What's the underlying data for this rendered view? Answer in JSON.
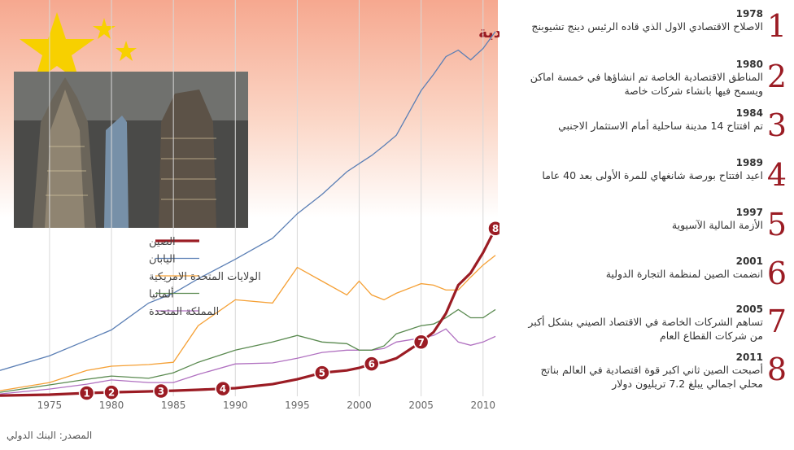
{
  "chart_data": {
    "type": "line",
    "title": "الناتج المحلي الاجمالي المتزايد للصين ومعجزتها الاقتصادية",
    "x": [
      1971,
      1975,
      1978,
      1980,
      1983,
      1985,
      1987,
      1990,
      1993,
      1995,
      1997,
      1999,
      2000,
      2001,
      2002,
      2003,
      2005,
      2006,
      2007,
      2008,
      2009,
      2010,
      2011
    ],
    "xlim": [
      1971,
      2011
    ],
    "xticks": [
      1975,
      1980,
      1985,
      1990,
      1995,
      2000,
      2005,
      2010
    ],
    "ylim": [
      0,
      17
    ],
    "grid": true,
    "series": [
      {
        "name": "الصين",
        "color": "#9b1c24",
        "values": [
          0.03,
          0.07,
          0.14,
          0.17,
          0.21,
          0.24,
          0.28,
          0.35,
          0.52,
          0.73,
          1.01,
          1.11,
          1.22,
          1.39,
          1.46,
          1.63,
          2.33,
          2.75,
          3.55,
          4.77,
          5.29,
          6.16,
          7.2
        ]
      },
      {
        "name": "اليابان",
        "color": "#5b7fb5",
        "values": [
          1.11,
          1.74,
          2.4,
          2.85,
          4.0,
          4.42,
          5.04,
          5.88,
          6.78,
          7.83,
          8.66,
          9.63,
          9.98,
          10.33,
          10.75,
          11.2,
          13.11,
          13.81,
          14.57,
          14.85,
          14.43,
          14.92,
          15.65
        ]
      },
      {
        "name": "الولايات المتحدة الامريكية",
        "color": "#f5a035",
        "values": [
          0.24,
          0.59,
          1.11,
          1.29,
          1.36,
          1.46,
          3.03,
          4.14,
          4.0,
          5.53,
          4.94,
          4.35,
          4.94,
          4.35,
          4.14,
          4.42,
          4.83,
          4.77,
          4.56,
          4.56,
          5.11,
          5.63,
          6.05
        ]
      },
      {
        "name": "ألمانيا",
        "color": "#5a8a50",
        "values": [
          0.17,
          0.49,
          0.73,
          0.87,
          0.77,
          1.01,
          1.46,
          1.98,
          2.33,
          2.61,
          2.33,
          2.26,
          1.98,
          1.98,
          2.16,
          2.68,
          3.03,
          3.1,
          3.37,
          3.72,
          3.37,
          3.37,
          3.72
        ]
      },
      {
        "name": "المملكة المتحدة",
        "color": "#b070c0",
        "values": [
          0.1,
          0.31,
          0.52,
          0.7,
          0.59,
          0.59,
          0.94,
          1.39,
          1.43,
          1.63,
          1.88,
          1.98,
          1.98,
          1.98,
          2.05,
          2.33,
          2.5,
          2.61,
          2.89,
          2.33,
          2.19,
          2.33,
          2.57
        ]
      }
    ],
    "source": "المصدر: البنك الدولي"
  },
  "timeline": [
    {
      "number": 1,
      "year": 1978,
      "text": "الاصلاح الاقتصادي الاول الذي قاده الرئيس دينج  تشيوبنج"
    },
    {
      "number": 2,
      "year": 1980,
      "text": "المناطق الاقتصادية الخاصة  تم انشاؤها في خمسة اماكن ويسمح فيها بانشاء شركات خاصة"
    },
    {
      "number": 3,
      "year": 1984,
      "text": "تم افتتاح 14 مدينة ساحلية أمام الاستثمار الاجنبي"
    },
    {
      "number": 4,
      "year": 1989,
      "text": "اعيد افتتاح بورصة شانغهاي للمرة الأولى بعد 40 عاما"
    },
    {
      "number": 5,
      "year": 1997,
      "text": "الأزمة المالية الآسيوية"
    },
    {
      "number": 6,
      "year": 2001,
      "text": "انضمت الصين لمنظمة التجارة الدولية"
    },
    {
      "number": 7,
      "year": 2005,
      "text": "تساهم الشركات الخاصة  في الاقتصاد الصيني بشكل أكبر من شركات القطاع العام"
    },
    {
      "number": 8,
      "year": 2011,
      "text": "أصبحت الصين ثاني اكبر قوة اقتصادية في العالم بناتج محلي اجمالي يبلغ 7.2 تريليون دولار"
    }
  ]
}
